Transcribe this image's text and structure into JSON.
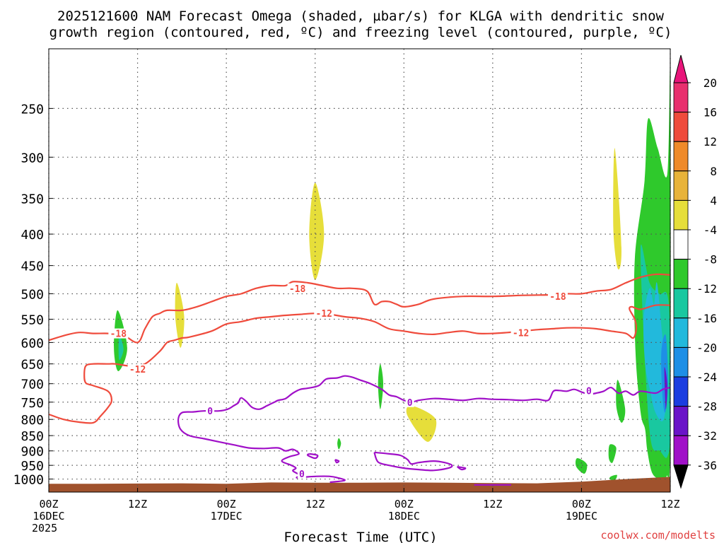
{
  "chart_data": {
    "type": "heatmap",
    "title_line1": "2025121600 NAM Forecast Omega (shaded, µbar/s) for KLGA with dendritic snow",
    "title_line2": "growth region (contoured, red, ºC) and freezing level (contoured, purple, ºC)",
    "xlabel": "Forecast Time (UTC)",
    "credit": "coolwx.com/modelts",
    "x_hours_range": [
      0,
      84
    ],
    "y_pressure_range_hpa": [
      1050,
      200
    ],
    "y_ticks": [
      250,
      300,
      350,
      400,
      450,
      500,
      550,
      600,
      650,
      700,
      750,
      800,
      850,
      900,
      950,
      1000
    ],
    "x_ticks": [
      {
        "hour": 0,
        "lines": [
          "00Z",
          "16DEC",
          "2025"
        ]
      },
      {
        "hour": 12,
        "lines": [
          "12Z"
        ]
      },
      {
        "hour": 24,
        "lines": [
          "00Z",
          "17DEC"
        ]
      },
      {
        "hour": 36,
        "lines": [
          "12Z"
        ]
      },
      {
        "hour": 48,
        "lines": [
          "00Z",
          "18DEC"
        ]
      },
      {
        "hour": 60,
        "lines": [
          "12Z"
        ]
      },
      {
        "hour": 72,
        "lines": [
          "00Z",
          "19DEC"
        ]
      },
      {
        "hour": 84,
        "lines": [
          "12Z"
        ]
      }
    ],
    "colorbar": [
      {
        "label": "20",
        "color": "#e8306e"
      },
      {
        "label": "16",
        "color": "#ef4b3c"
      },
      {
        "label": "12",
        "color": "#ef8a2a"
      },
      {
        "label": "8",
        "color": "#e8b33a"
      },
      {
        "label": "4",
        "color": "#e6de3a"
      },
      {
        "label": "-4",
        "color": "#ffffff"
      },
      {
        "label": "-8",
        "color": "#2fc92c"
      },
      {
        "label": "-12",
        "color": "#19c8a0"
      },
      {
        "label": "-16",
        "color": "#22b9dc"
      },
      {
        "label": "-20",
        "color": "#1e8fe6"
      },
      {
        "label": "-24",
        "color": "#1b3ee0"
      },
      {
        "label": "-28",
        "color": "#6a14c8"
      },
      {
        "label": "-32",
        "color": "#a010c8"
      },
      {
        "label": "-36",
        "color": "#a8a8a8"
      }
    ],
    "colorbar_top_arrow_color": "#e8157a",
    "colorbar_bottom_arrow_color": "#000000",
    "omega_regions": [
      {
        "color": "#e6de3a",
        "t": [
          36.0,
          37.2,
          36.0,
          35.2
        ],
        "p": [
          330,
          400,
          475,
          400
        ]
      },
      {
        "color": "#e6de3a",
        "t": [
          17.3,
          18.3,
          17.8,
          17.1
        ],
        "p": [
          480,
          545,
          612,
          545
        ]
      },
      {
        "color": "#e6de3a",
        "t": [
          49.0,
          52.3,
          51.2,
          48.5
        ],
        "p": [
          760,
          800,
          870,
          790
        ]
      },
      {
        "color": "#e6de3a",
        "t": [
          76.5,
          77.4,
          76.9,
          76.3
        ],
        "p": [
          290,
          420,
          455,
          390
        ]
      },
      {
        "color": "#2fc92c",
        "t": [
          9.3,
          10.6,
          9.4,
          8.8
        ],
        "p": [
          532,
          612,
          668,
          612
        ]
      },
      {
        "color": "#19c8a0",
        "t": [
          9.5,
          10.1,
          9.5
        ],
        "p": [
          585,
          615,
          640
        ]
      },
      {
        "color": "#2fc92c",
        "t": [
          44.8,
          45.2,
          44.8,
          44.5
        ],
        "p": [
          650,
          700,
          770,
          700
        ]
      },
      {
        "color": "#2fc92c",
        "t": [
          39.2,
          39.5,
          39.2,
          39.0
        ],
        "p": [
          858,
          875,
          895,
          875
        ]
      },
      {
        "color": "#2fc92c",
        "t": [
          71.4,
          72.7,
          72.4,
          71.3
        ],
        "p": [
          925,
          945,
          980,
          955
        ]
      },
      {
        "color": "#2fc92c",
        "t": [
          75.8,
          76.7,
          76.2,
          75.7
        ],
        "p": [
          880,
          890,
          940,
          925
        ]
      },
      {
        "color": "#2fc92c",
        "t": [
          76.0,
          76.8,
          76.5,
          75.8
        ],
        "p": [
          990,
          985,
          1005,
          1000
        ]
      },
      {
        "color": "#2fc92c",
        "t": [
          76.9,
          77.9,
          77.4,
          76.7
        ],
        "p": [
          690,
          770,
          810,
          760
        ]
      },
      {
        "color": "#2fc92c",
        "t": [
          79.2,
          80.5,
          81.0,
          82.3,
          83.6,
          84.0,
          84.0,
          83.5,
          82.8,
          81.6,
          80.9,
          80.6,
          80.0,
          79.3
        ],
        "p": [
          440,
          330,
          260,
          290,
          320,
          220,
          860,
          990,
          1000,
          980,
          900,
          830,
          780,
          620
        ]
      },
      {
        "color": "#19c8a0",
        "t": [
          80.0,
          81.2,
          82.5,
          83.8,
          84.0,
          83.6,
          82.6,
          81.4,
          80.6
        ],
        "p": [
          420,
          480,
          500,
          520,
          820,
          920,
          900,
          870,
          650
        ]
      },
      {
        "color": "#22b9dc",
        "t": [
          80.4,
          81.2,
          81.8,
          82.2,
          82.9,
          83.6,
          83.1,
          82.0,
          81.3,
          80.6
        ],
        "p": [
          550,
          490,
          520,
          480,
          580,
          690,
          800,
          780,
          720,
          650
        ]
      },
      {
        "color": "#1e8fe6",
        "t": [
          82.8,
          83.4,
          83.7,
          83.3,
          82.9
        ],
        "p": [
          620,
          585,
          700,
          780,
          720
        ]
      },
      {
        "color": "#6a14c8",
        "t": [
          83.2,
          83.6,
          83.4
        ],
        "p": [
          660,
          700,
          770
        ]
      }
    ],
    "dgz_minus18": {
      "color": "#ef4b3c",
      "label": "-18",
      "label_points": [
        [
          33.6,
          490
        ],
        [
          68.8,
          505
        ],
        [
          9.4,
          580
        ]
      ],
      "t": [
        0,
        2,
        4,
        6,
        8,
        10,
        12,
        13,
        14,
        15,
        16,
        18,
        20,
        22,
        24,
        26,
        28,
        30,
        32,
        33,
        35,
        37,
        39,
        41,
        43,
        44,
        45,
        46,
        47,
        48,
        50,
        52,
        56,
        60,
        64,
        68,
        70,
        72,
        74,
        76,
        78,
        80,
        82,
        84
      ],
      "p": [
        595,
        585,
        578,
        580,
        580,
        583,
        600,
        570,
        545,
        538,
        532,
        532,
        525,
        515,
        505,
        500,
        490,
        485,
        485,
        478,
        480,
        485,
        490,
        490,
        495,
        520,
        515,
        515,
        520,
        525,
        520,
        510,
        505,
        505,
        503,
        502,
        500,
        500,
        495,
        492,
        480,
        470,
        465,
        466
      ]
    },
    "dgz_minus12": {
      "color": "#ef4b3c",
      "label": "-12",
      "label_points": [
        [
          12.0,
          663
        ],
        [
          37.2,
          538
        ],
        [
          63.8,
          578
        ]
      ],
      "t": [
        0,
        2,
        4,
        6,
        7,
        8,
        8.5,
        8,
        6,
        5,
        4.8,
        5,
        6,
        8,
        9,
        11,
        13,
        15,
        16,
        17,
        18,
        19,
        22,
        24,
        26,
        28,
        30,
        32,
        34,
        36,
        38,
        40,
        42,
        44,
        46,
        48,
        50,
        52,
        54,
        56,
        58,
        60,
        62,
        64,
        66,
        68,
        70,
        72,
        74,
        76,
        78,
        79,
        79.4,
        79.2,
        78.5,
        78.8,
        80,
        82,
        84
      ],
      "p": [
        785,
        800,
        808,
        810,
        790,
        765,
        745,
        720,
        705,
        698,
        678,
        655,
        650,
        650,
        650,
        655,
        650,
        620,
        600,
        595,
        590,
        588,
        575,
        560,
        555,
        548,
        545,
        542,
        540,
        538,
        540,
        545,
        548,
        555,
        570,
        575,
        580,
        582,
        578,
        575,
        580,
        580,
        578,
        575,
        572,
        570,
        568,
        568,
        570,
        575,
        580,
        590,
        570,
        550,
        530,
        525,
        530,
        522,
        522
      ]
    },
    "freezing_level": {
      "color": "#a010c8",
      "label": "0",
      "label_points": [
        [
          21.8,
          775
        ],
        [
          48.8,
          750
        ],
        [
          73.0,
          718
        ],
        [
          34.2,
          980
        ]
      ],
      "segments": [
        {
          "t": [
            26.8,
            26.0,
            25.6,
            25.0,
            24.2,
            23.0,
            21.0,
            19.5,
            18.0,
            17.5,
            17.8,
            19.0,
            21.0,
            23.0,
            25.0,
            27.0,
            29.0,
            31.0,
            32.0,
            33.0,
            33.8,
            32.5,
            31.5,
            32.8,
            33.4,
            33.0,
            33.9,
            33.5,
            34.5,
            36.0,
            38.0,
            39.0,
            40.0,
            38.0
          ],
          "p": [
            750,
            738,
            752,
            760,
            770,
            775,
            775,
            778,
            780,
            800,
            830,
            850,
            860,
            870,
            880,
            890,
            892,
            890,
            900,
            895,
            910,
            920,
            935,
            950,
            960,
            970,
            985,
            995,
            993,
            990,
            990,
            995,
            1005,
            1012
          ]
        },
        {
          "t": [
            26.8,
            27.5,
            28.5,
            29.5,
            30.5,
            31.0,
            32.0,
            33.0,
            34.0,
            35.0,
            36.5,
            37.5,
            39.0,
            40.0,
            41.0,
            42.0,
            43.5,
            45.0,
            46.0,
            47.0,
            48.0,
            49.0,
            50.0,
            52.0,
            54.0,
            56.0,
            58.0,
            60.0,
            62.0,
            64.0,
            66.0,
            67.5,
            68.2,
            69.0,
            70.0,
            71.0,
            72.0,
            73.0,
            74.0,
            75.0,
            76.0,
            77.0,
            78.0,
            79.0,
            80.0,
            82.0,
            83.0,
            84.0
          ],
          "p": [
            750,
            765,
            770,
            760,
            750,
            745,
            740,
            725,
            715,
            712,
            705,
            688,
            685,
            680,
            683,
            690,
            700,
            715,
            730,
            735,
            745,
            750,
            745,
            740,
            742,
            745,
            740,
            742,
            743,
            745,
            742,
            745,
            720,
            718,
            720,
            715,
            722,
            728,
            725,
            720,
            710,
            725,
            720,
            730,
            720,
            725,
            715,
            710
          ]
        },
        {
          "t": [
            44.0,
            46.0,
            47.5,
            48.5,
            49.0,
            50.0,
            52.0,
            53.5,
            54.5,
            54.0,
            52.0,
            50.0,
            48.0,
            46.0,
            44.5,
            44.0
          ],
          "p": [
            905,
            910,
            915,
            930,
            945,
            940,
            935,
            940,
            950,
            960,
            968,
            965,
            960,
            950,
            938,
            905
          ]
        },
        {
          "t": [
            35.2,
            36.3,
            36.0,
            35.0,
            35.2
          ],
          "p": [
            910,
            915,
            925,
            915,
            910
          ]
        },
        {
          "t": [
            38.7,
            39.2,
            38.9,
            38.7
          ],
          "p": [
            930,
            935,
            940,
            930
          ]
        },
        {
          "t": [
            55.2,
            56.3,
            55.8,
            55.2
          ],
          "p": [
            955,
            960,
            965,
            955
          ]
        },
        {
          "t": [
            57.5,
            62.5
          ],
          "p": [
            1022,
            1022
          ]
        }
      ]
    },
    "terrain_color": "#a0522d",
    "terrain": {
      "t": [
        0,
        6,
        12,
        18,
        24,
        30,
        36,
        42,
        48,
        54,
        60,
        66,
        72,
        78,
        84
      ],
      "p": [
        1018,
        1018,
        1017,
        1016,
        1018,
        1013,
        1014,
        1014,
        1013,
        1014,
        1015,
        1016,
        1010,
        1000,
        992
      ]
    }
  }
}
